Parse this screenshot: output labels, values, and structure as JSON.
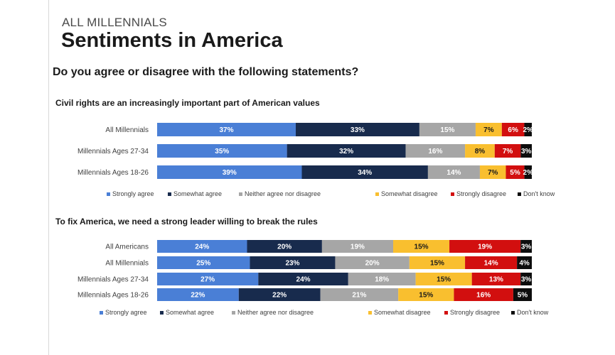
{
  "header": {
    "kicker": "ALL MILLENNIALS",
    "title": "Sentiments in America",
    "question": "Do you agree or disagree with the following statements?"
  },
  "colors": {
    "strongly_agree": "#4a7fd6",
    "somewhat_agree": "#182b4d",
    "neither": "#a6a6a6",
    "somewhat_disagree": "#f9bf2f",
    "strongly_disagree": "#d20f0f",
    "dont_know": "#0d0d0d"
  },
  "chart_data": [
    {
      "type": "bar",
      "stacked": true,
      "orientation": "horizontal",
      "title": "Civil rights are an increasingly important part of American values",
      "categories": [
        "All Millennials",
        "Millennials Ages 27-34",
        "Millennials Ages 18-26"
      ],
      "series": [
        {
          "name": "Strongly agree",
          "key": "strongly_agree",
          "values": [
            37,
            35,
            39
          ]
        },
        {
          "name": "Somewhat agree",
          "key": "somewhat_agree",
          "values": [
            33,
            32,
            34
          ]
        },
        {
          "name": "Neither agree nor disagree",
          "key": "neither",
          "values": [
            15,
            16,
            14
          ]
        },
        {
          "name": "Somewhat disagree",
          "key": "somewhat_disagree",
          "values": [
            7,
            8,
            7
          ]
        },
        {
          "name": "Strongly disagree",
          "key": "strongly_disagree",
          "values": [
            6,
            7,
            5
          ]
        },
        {
          "name": "Don't know",
          "key": "dont_know",
          "values": [
            2,
            3,
            2
          ]
        }
      ],
      "unit": "%",
      "legend": "bottom"
    },
    {
      "type": "bar",
      "stacked": true,
      "orientation": "horizontal",
      "title": "To fix America, we need a strong leader willing to break the rules",
      "categories": [
        "All Americans",
        "All Millennials",
        "Millennials Ages 27-34",
        "Millennials Ages 18-26"
      ],
      "series": [
        {
          "name": "Strongly agree",
          "key": "strongly_agree",
          "values": [
            24,
            25,
            27,
            22
          ]
        },
        {
          "name": "Somewhat agree",
          "key": "somewhat_agree",
          "values": [
            20,
            23,
            24,
            22
          ]
        },
        {
          "name": "Neither agree nor disagree",
          "key": "neither",
          "values": [
            19,
            20,
            18,
            21
          ]
        },
        {
          "name": "Somewhat disagree",
          "key": "somewhat_disagree",
          "values": [
            15,
            15,
            15,
            15
          ]
        },
        {
          "name": "Strongly disagree",
          "key": "strongly_disagree",
          "values": [
            19,
            14,
            13,
            16
          ]
        },
        {
          "name": "Don't know",
          "key": "dont_know",
          "values": [
            3,
            4,
            3,
            5
          ]
        }
      ],
      "unit": "%",
      "legend": "bottom"
    }
  ]
}
